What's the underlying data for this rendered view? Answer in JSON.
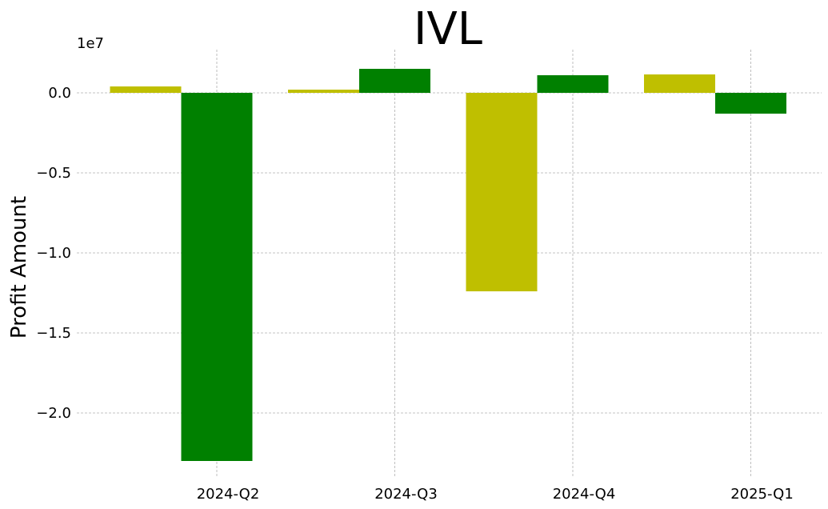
{
  "chart_data": {
    "type": "bar",
    "title": "IVL",
    "ylabel": "Profit Amount",
    "xlabel": "",
    "y_offset_label": "1e7",
    "y_scale": 10000000,
    "categories": [
      "2024-Q2",
      "2024-Q3",
      "2024-Q4",
      "2025-Q1"
    ],
    "series": [
      {
        "color": "#bfbf00",
        "values": [
          400000,
          200000,
          -12400000,
          1150000
        ]
      },
      {
        "color": "#008000",
        "values": [
          -23000000,
          1500000,
          1100000,
          -1300000
        ]
      }
    ],
    "ylim": [
      -24000000,
      2700000
    ],
    "yticks": [
      0,
      -5000000,
      -10000000,
      -15000000,
      -20000000
    ],
    "ytick_labels": [
      "0.0",
      "−0.5",
      "−1.0",
      "−1.5",
      "−2.0"
    ],
    "grid": true
  }
}
